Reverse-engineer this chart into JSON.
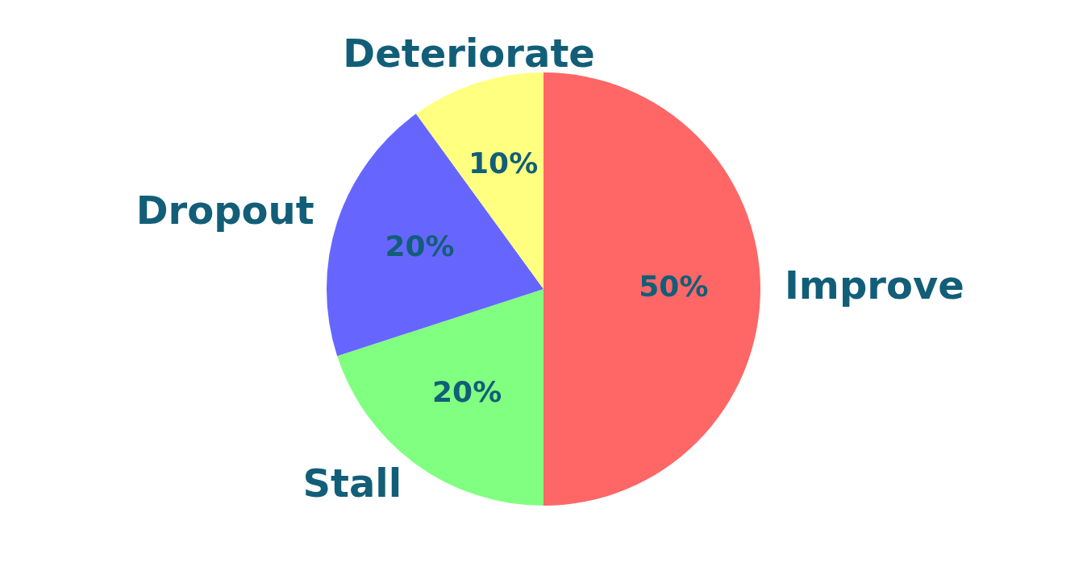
{
  "chart_data": {
    "type": "pie",
    "categories": [
      "Improve",
      "Stall",
      "Dropout",
      "Deteriorate"
    ],
    "values": [
      50,
      20,
      20,
      10
    ],
    "colors": [
      "#ff6666",
      "#80ff80",
      "#6666ff",
      "#ffff80"
    ],
    "value_labels": [
      "50%",
      "20%",
      "20%",
      "10%"
    ],
    "legend": false
  }
}
